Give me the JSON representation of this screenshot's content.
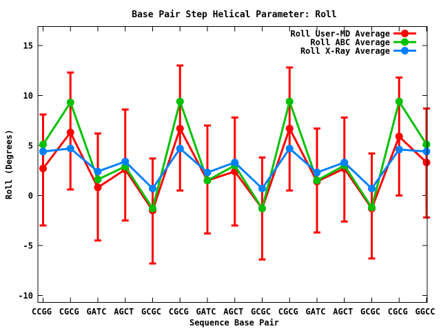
{
  "title": "Base Pair Step Helical Parameter: Roll",
  "chart_data": {
    "type": "line",
    "title": "Base Pair Step Helical Parameter: Roll",
    "xlabel": "Sequence Base Pair",
    "ylabel": "Roll (Degrees)",
    "categories": [
      "CCGG",
      "CGCG",
      "GATC",
      "AGCT",
      "GCGC",
      "CGCG",
      "GATC",
      "AGCT",
      "GCGC",
      "CGCG",
      "GATC",
      "AGCT",
      "GCGC",
      "CGCG",
      "GGCC"
    ],
    "yticks": [
      15,
      10,
      5,
      0,
      -5,
      -10
    ],
    "ylim": [
      -10.7,
      16.9
    ],
    "grid": false,
    "legend_position": "top-right-inside",
    "marker": "filled-circle",
    "series": [
      {
        "name": "Roll User-MD Average",
        "color": "#ff0000",
        "values": [
          2.7,
          6.3,
          0.8,
          2.6,
          -1.5,
          6.7,
          1.5,
          2.4,
          -1.3,
          6.7,
          1.4,
          2.7,
          -1.3,
          5.9,
          3.3
        ],
        "err_lo": [
          -3.0,
          0.6,
          -4.5,
          -2.5,
          -6.8,
          0.5,
          -3.8,
          -3.0,
          -6.4,
          0.5,
          -3.7,
          -2.6,
          -6.3,
          0.0,
          -2.2
        ],
        "err_hi": [
          8.1,
          12.3,
          6.2,
          8.6,
          3.7,
          13.0,
          7.0,
          7.8,
          3.8,
          12.8,
          6.7,
          7.8,
          4.2,
          11.8,
          8.7
        ]
      },
      {
        "name": "Roll ABC Average",
        "color": "#00c000",
        "values": [
          5.1,
          9.3,
          1.6,
          2.9,
          -1.3,
          9.4,
          1.5,
          3.0,
          -1.3,
          9.4,
          1.5,
          3.0,
          -1.2,
          9.4,
          5.1
        ]
      },
      {
        "name": "Roll X-Ray Average",
        "color": "#0080ff",
        "values": [
          4.4,
          4.7,
          2.4,
          3.4,
          0.7,
          4.7,
          2.3,
          3.3,
          0.7,
          4.7,
          2.3,
          3.3,
          0.7,
          4.6,
          4.4
        ]
      }
    ]
  }
}
